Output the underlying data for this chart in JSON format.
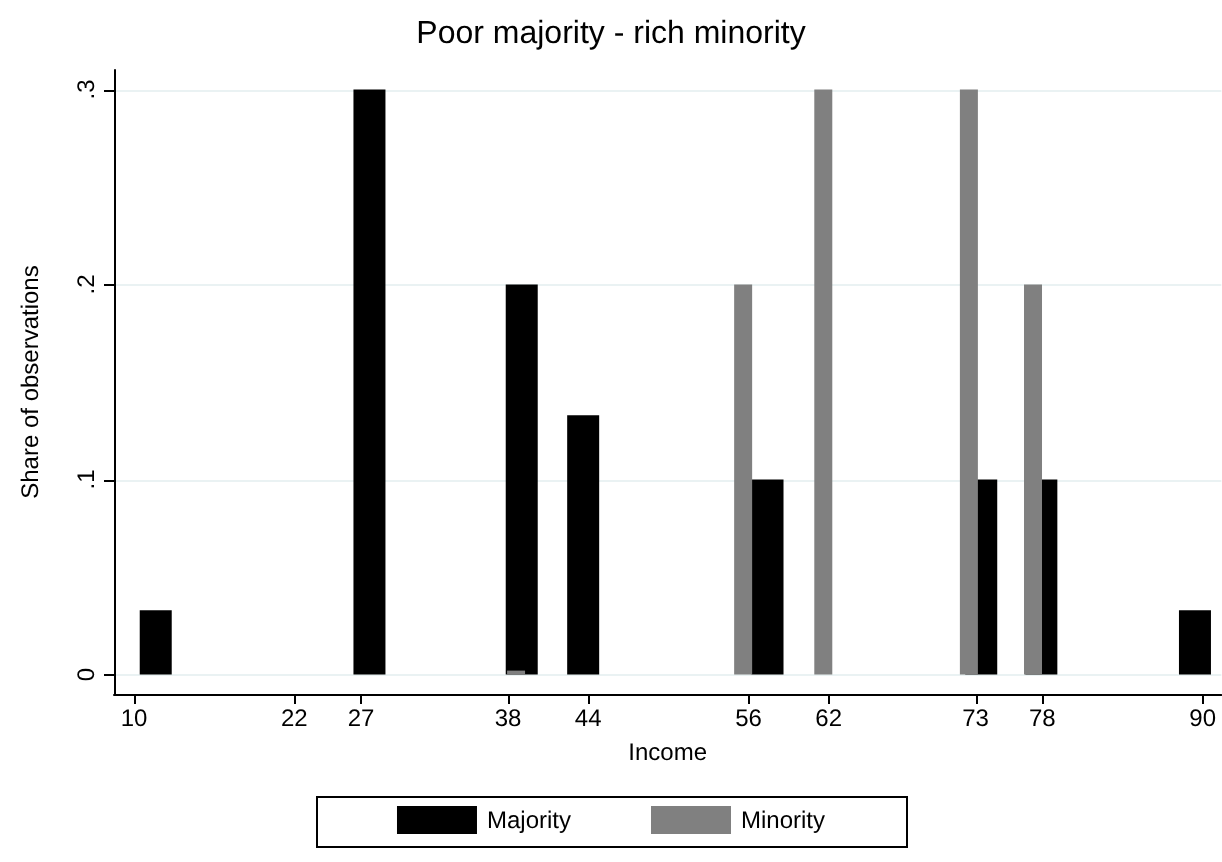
{
  "chart_data": {
    "type": "bar",
    "title": "Poor majority - rich minority",
    "xlabel": "Income",
    "ylabel": "Share of observations",
    "xlim": [
      8.5,
      91.4
    ],
    "xticks": [
      10,
      22,
      27,
      38,
      44,
      56,
      62,
      73,
      78,
      90
    ],
    "ylim": [
      -0.01,
      0.31
    ],
    "yticks": [
      {
        "value": 0,
        "label": "0"
      },
      {
        "value": 0.1,
        "label": ".1"
      },
      {
        "value": 0.2,
        "label": ".2"
      },
      {
        "value": 0.3,
        "label": ".3"
      }
    ],
    "grid": "y",
    "legend": "bottom",
    "series": [
      {
        "name": "Majority",
        "color": "#000000",
        "x": [
          11.1,
          27.1,
          38.5,
          43.1,
          56.9,
          72.9,
          77.4,
          88.9
        ],
        "values": [
          0.033,
          0.3,
          0.2,
          0.133,
          0.1,
          0.1,
          0.1,
          0.033
        ]
      },
      {
        "name": "Minority",
        "color": "#808080",
        "x": [
          38.6,
          55.6,
          61.6,
          72.5,
          77.3
        ],
        "values": [
          0.002,
          0.2,
          0.3,
          0.3,
          0.2
        ]
      }
    ]
  }
}
